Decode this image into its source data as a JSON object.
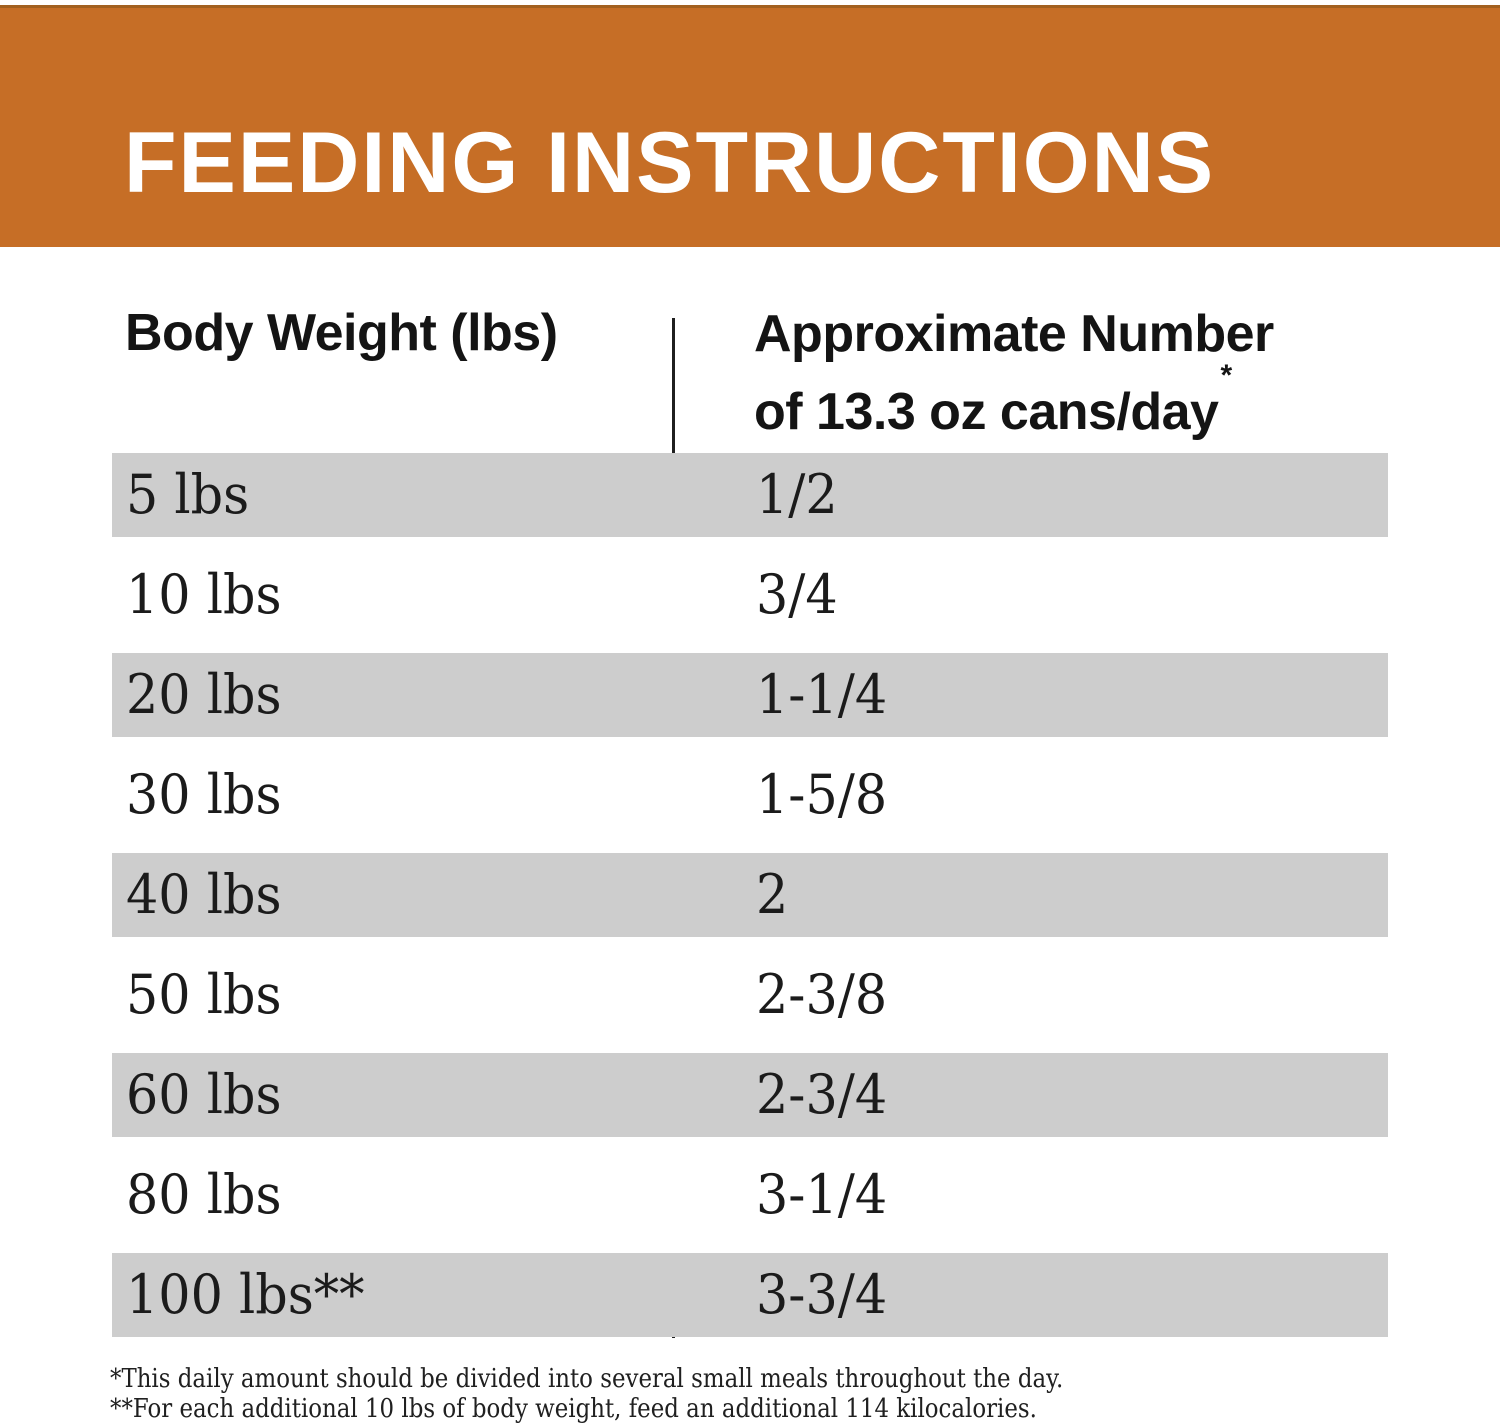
{
  "colors": {
    "accent_orange": "#c66e26",
    "row_stripe_gray": "#cdcdcd",
    "title_text": "#ffffff",
    "body_text": "#1b1b1b"
  },
  "header": {
    "title": "FEEDING INSTRUCTIONS"
  },
  "table": {
    "col1_header": "Body Weight (lbs)",
    "col2_header_line1": "Approximate Number",
    "col2_header_line2": "of 13.3 oz cans/day",
    "col2_header_superscript": "*",
    "rows": [
      {
        "weight": "5 lbs",
        "cans": "1/2"
      },
      {
        "weight": "10 lbs",
        "cans": "3/4"
      },
      {
        "weight": "20 lbs",
        "cans": "1-1/4"
      },
      {
        "weight": "30 lbs",
        "cans": "1-5/8"
      },
      {
        "weight": "40 lbs",
        "cans": "2"
      },
      {
        "weight": "50 lbs",
        "cans": "2-3/8"
      },
      {
        "weight": "60 lbs",
        "cans": "2-3/4"
      },
      {
        "weight": "80 lbs",
        "cans": "3-1/4"
      },
      {
        "weight": "100 lbs**",
        "cans": "3-3/4"
      }
    ]
  },
  "footnotes": {
    "line1": "*This daily amount should be divided into several small meals throughout the day.",
    "line2": "**For each additional 10 lbs of body weight, feed an additional 114 kilocalories."
  }
}
